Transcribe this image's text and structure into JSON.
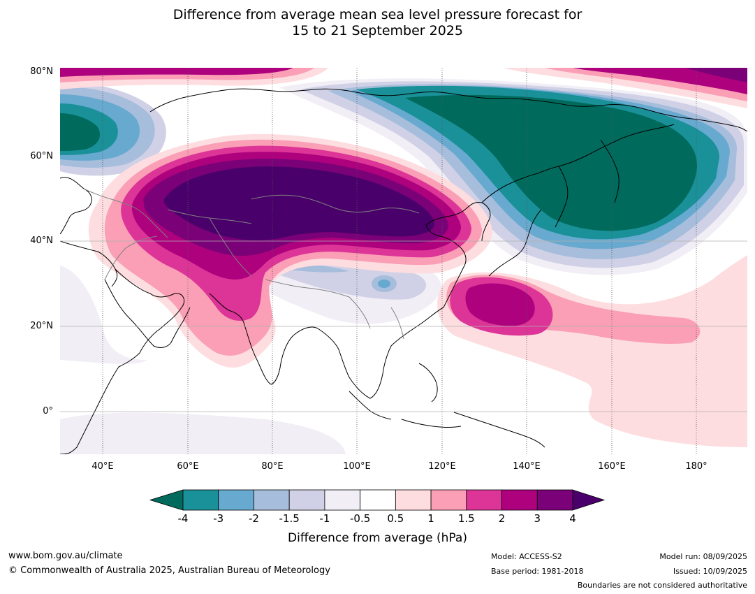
{
  "title": {
    "line1": "Difference from average mean sea level pressure forecast for",
    "line2": "15 to 21 September 2025"
  },
  "map": {
    "latitude_labels": [
      "80°N",
      "60°N",
      "40°N",
      "20°N",
      "0°"
    ],
    "longitude_labels": [
      "40°E",
      "60°E",
      "80°E",
      "100°E",
      "120°E",
      "140°E",
      "160°E",
      "180°"
    ],
    "colors": {
      "lt_-4": "#006b5d",
      "-4_-3": "#1a9098",
      "-3_-2": "#67a9cf",
      "-2_-1.5": "#a6bddb",
      "-1.5_-1": "#d0d1e6",
      "-1_-0.5": "#f1eef6",
      "-0.5_0.5": "#ffffff",
      "0.5_1": "#fedde0",
      "1_1.5": "#fa9fb5",
      "1.5_2": "#dd3497",
      "2_3": "#ae017e",
      "3_4": "#7a0177",
      "gt_4": "#49006a"
    }
  },
  "colorbar": {
    "ticks": [
      "-4",
      "-3",
      "-2",
      "-1.5",
      "-1",
      "-0.5",
      "0.5",
      "1",
      "1.5",
      "2",
      "3",
      "4"
    ],
    "title": "Difference from average (hPa)",
    "segment_colors": [
      "#1a9098",
      "#67a9cf",
      "#a6bddb",
      "#d0d1e6",
      "#f1eef6",
      "#ffffff",
      "#fedde0",
      "#fa9fb5",
      "#dd3497",
      "#ae017e",
      "#7a0177"
    ],
    "low_arrow_color": "#006b5d",
    "high_arrow_color": "#49006a"
  },
  "footer": {
    "website": "www.bom.gov.au/climate",
    "copyright": "© Commonwealth of Australia 2025, Australian Bureau of Meteorology",
    "model": "Model: ACCESS-S2",
    "base_period": "Base period: 1981-2018",
    "model_run": "Model run: 08/09/2025",
    "issued": "Issued: 10/09/2025",
    "disclaimer": "Boundaries are not considered authoritative"
  }
}
